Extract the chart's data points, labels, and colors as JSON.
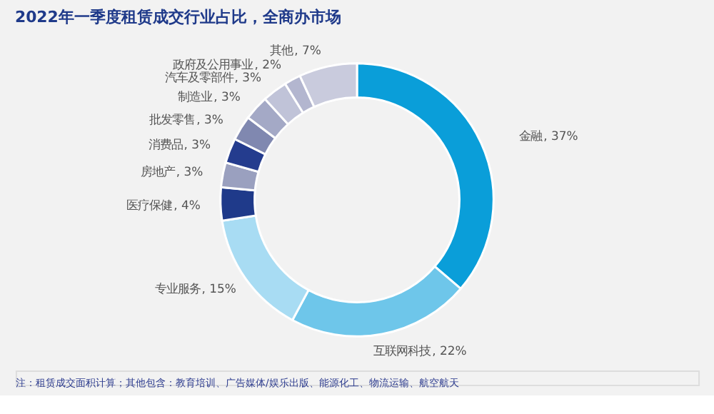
{
  "chart_data": {
    "type": "donut",
    "title": "2022年一季度租赁成交行业占比，全商办市场",
    "categories": [
      "金融",
      "互联网科技",
      "专业服务",
      "医疗保健",
      "房地产",
      "消费品",
      "批发零售",
      "制造业",
      "汽车及零部件",
      "政府及公用事业",
      "其他"
    ],
    "values": [
      37,
      22,
      15,
      4,
      3,
      3,
      3,
      3,
      3,
      2,
      7
    ],
    "colors": [
      "#0a9ed9",
      "#6ec6ea",
      "#a8dcf3",
      "#1f3a8a",
      "#9aa0bf",
      "#243c8e",
      "#8088b0",
      "#a4a9c6",
      "#c0c3d8",
      "#b3b6cf",
      "#c9cbdd"
    ],
    "value_labels": [
      ", 37%",
      ", 22%",
      ", 15%",
      ", 4%",
      ", 3%",
      ", 3%",
      ", 3%",
      ", 3%",
      ", 3%",
      ", 2%",
      ", 7%"
    ],
    "legend": false,
    "annotations": [
      "注：租赁成交面积计算；其他包含：教育培训、广告媒体/娱乐出版、能源化工、物流运输、航空航天"
    ]
  }
}
